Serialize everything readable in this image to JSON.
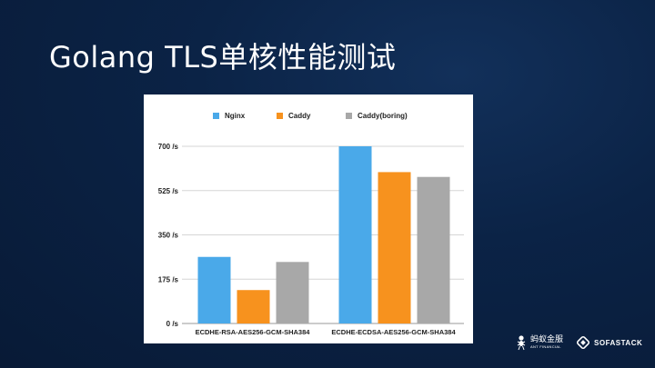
{
  "slide": {
    "title": "Golang TLS单核性能测试"
  },
  "chart_data": {
    "type": "bar",
    "categories": [
      "ECDHE-RSA-AES256-GCM-SHA384",
      "ECDHE-ECDSA-AES256-GCM-SHA384"
    ],
    "series": [
      {
        "name": "Nginx",
        "values": [
          263,
          700
        ],
        "color": "#4aa9e9"
      },
      {
        "name": "Caddy",
        "values": [
          132,
          598
        ],
        "color": "#f7921e"
      },
      {
        "name": "Caddy(boring)",
        "values": [
          243,
          579
        ],
        "color": "#a8a8a8"
      }
    ],
    "yticks": [
      "0 /s",
      "175 /s",
      "350 /s",
      "525 /s",
      "700 /s"
    ],
    "ylim": [
      0,
      700
    ],
    "grid": true,
    "legend": "top"
  },
  "logos": {
    "ant_cn": "蚂蚁金服",
    "ant_en": "ANT FINANCIAL",
    "sofa": "SOFASTACK"
  }
}
